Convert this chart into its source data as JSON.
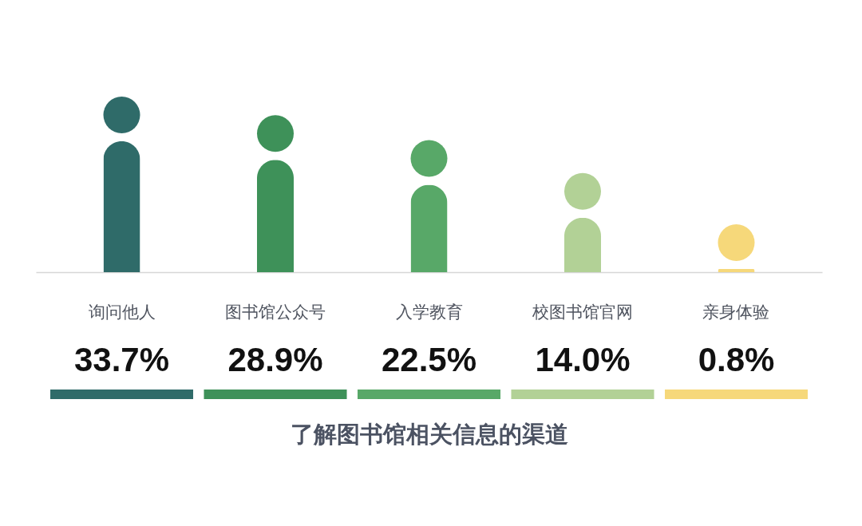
{
  "chart_data": {
    "type": "bar",
    "title": "了解图书馆相关信息的渠道",
    "categories": [
      "询问他人",
      "图书馆公众号",
      "入学教育",
      "校图书馆官网",
      "亲身体验"
    ],
    "values": [
      33.7,
      28.9,
      22.5,
      14.0,
      0.8
    ],
    "colors": [
      "#2f6b69",
      "#3e9159",
      "#58a868",
      "#b2d196",
      "#f6d87a"
    ],
    "value_labels": [
      "33.7%",
      "28.9%",
      "22.5%",
      "14.0%",
      "0.8%"
    ]
  }
}
